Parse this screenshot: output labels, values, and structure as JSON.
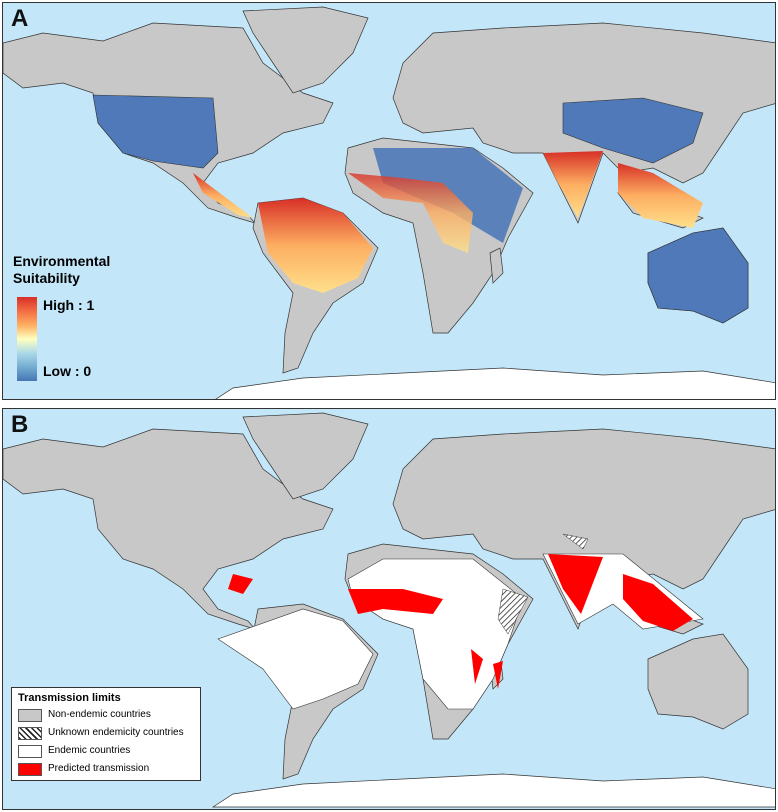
{
  "panels": [
    {
      "label": "A",
      "legend": {
        "title": "Environmental Suitability",
        "high": "High : 1",
        "low": "Low : 0"
      }
    },
    {
      "label": "B",
      "legend": {
        "title": "Transmission limits",
        "items": [
          "Non-endemic countries",
          "Unknown endemicity countries",
          "Endemic countries",
          "Predicted transmission"
        ]
      }
    }
  ]
}
